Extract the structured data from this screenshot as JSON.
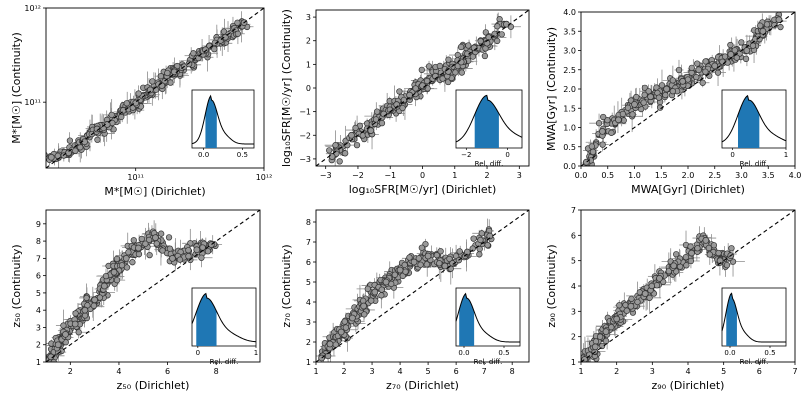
{
  "chart_data": [
    {
      "type": "scatter",
      "xlabel": "M*[M☉] (Dirichlet)",
      "ylabel": "M*[M☉] (Continuity)",
      "xscale": "log",
      "yscale": "log",
      "xlim": [
        20000000000,
        1000000000000
      ],
      "ylim": [
        20000000000,
        1000000000000
      ],
      "xticks": [
        100000000000,
        1000000000000
      ],
      "xticklabels": [
        "10¹¹",
        "10¹²"
      ],
      "yticks": [
        100000000000,
        1000000000000
      ],
      "yticklabels": [
        "10¹¹",
        "10¹²"
      ],
      "points": [
        [
          22000000000,
          26000000000
        ],
        [
          30000000000,
          29000000000
        ],
        [
          40000000000,
          38000000000
        ],
        [
          50000000000,
          52000000000
        ],
        [
          60000000000,
          58000000000
        ],
        [
          80000000000,
          82000000000
        ],
        [
          100000000000,
          98000000000
        ],
        [
          130000000000,
          135000000000
        ],
        [
          160000000000,
          150000000000
        ],
        [
          200000000000,
          210000000000
        ],
        [
          260000000000,
          255000000000
        ],
        [
          350000000000,
          360000000000
        ],
        [
          500000000000,
          490000000000
        ],
        [
          700000000000,
          700000000000
        ]
      ],
      "identity_line": true,
      "inset": {
        "xlabel": "",
        "xticks": [
          0.0,
          0.5
        ],
        "xticklabels": [
          "0.0",
          "0.5"
        ],
        "xlim": [
          -0.15,
          0.65
        ],
        "peak": 0.1,
        "spread": 0.08
      }
    },
    {
      "type": "scatter",
      "xlabel": "log₁₀SFR[M☉/yr] (Dirichlet)",
      "ylabel": "log₁₀SFR[M☉/yr] (Continuity)",
      "xlim": [
        -3.3,
        3.3
      ],
      "ylim": [
        -3.3,
        3.3
      ],
      "xticks": [
        -3,
        -2,
        -1,
        0,
        1,
        2,
        3
      ],
      "xticklabels": [
        "−3",
        "−2",
        "−1",
        "0",
        "1",
        "2",
        "3"
      ],
      "yticks": [
        -3,
        -2,
        -1,
        0,
        1,
        2,
        3
      ],
      "yticklabels": [
        "−3",
        "−2",
        "−1",
        "0",
        "1",
        "2",
        "3"
      ],
      "points": [
        [
          -2.8,
          -2.9
        ],
        [
          -2.2,
          -2.0
        ],
        [
          -1.6,
          -1.8
        ],
        [
          -1.2,
          -1.1
        ],
        [
          -0.8,
          -0.7
        ],
        [
          -0.4,
          -0.3
        ],
        [
          0.0,
          0.1
        ],
        [
          0.4,
          0.5
        ],
        [
          0.8,
          0.7
        ],
        [
          1.2,
          1.1
        ],
        [
          1.6,
          1.7
        ],
        [
          2.0,
          1.9
        ],
        [
          2.6,
          2.7
        ]
      ],
      "identity_line": true,
      "inset": {
        "xlabel": "Rel. diff.",
        "xticks": [
          -2,
          0
        ],
        "xticklabels": [
          "−2",
          "0"
        ],
        "xlim": [
          -2.5,
          0.7
        ],
        "peak": -1.0,
        "spread": 0.6
      }
    },
    {
      "type": "scatter",
      "xlabel": "MWA[Gyr] (Dirichlet)",
      "ylabel": "MWA[Gyr] (Continuity)",
      "xlim": [
        0.0,
        4.0
      ],
      "ylim": [
        0.0,
        4.0
      ],
      "xticks": [
        0.0,
        0.5,
        1.0,
        1.5,
        2.0,
        2.5,
        3.0,
        3.5,
        4.0
      ],
      "xticklabels": [
        "0.0",
        "0.5",
        "1.0",
        "1.5",
        "2.0",
        "2.5",
        "3.0",
        "3.5",
        "4.0"
      ],
      "yticks": [
        0.0,
        0.5,
        1.0,
        1.5,
        2.0,
        2.5,
        3.0,
        3.5,
        4.0
      ],
      "yticklabels": [
        "0.0",
        "0.5",
        "1.0",
        "1.5",
        "2.0",
        "2.5",
        "3.0",
        "3.5",
        "4.0"
      ],
      "points": [
        [
          0.1,
          0.1
        ],
        [
          0.4,
          0.9
        ],
        [
          0.7,
          1.2
        ],
        [
          1.0,
          1.6
        ],
        [
          1.3,
          1.8
        ],
        [
          1.6,
          2.0
        ],
        [
          1.9,
          2.2
        ],
        [
          2.2,
          2.5
        ],
        [
          2.5,
          2.6
        ],
        [
          2.8,
          2.9
        ],
        [
          3.1,
          3.0
        ],
        [
          3.4,
          3.5
        ],
        [
          3.7,
          3.8
        ]
      ],
      "identity_line": true,
      "inset": {
        "xlabel": "Rel. diff.",
        "xticks": [
          0,
          1
        ],
        "xticklabels": [
          "0",
          "1"
        ],
        "xlim": [
          -0.2,
          1.0
        ],
        "peak": 0.3,
        "spread": 0.2
      }
    },
    {
      "type": "scatter",
      "xlabel": "z₅₀ (Dirichlet)",
      "ylabel": "z₅₀ (Continuity)",
      "xlim": [
        1.0,
        9.8
      ],
      "ylim": [
        1.0,
        9.8
      ],
      "xticks": [
        2,
        4,
        6,
        8
      ],
      "xticklabels": [
        "2",
        "4",
        "6",
        "8"
      ],
      "yticks": [
        1,
        2,
        3,
        4,
        5,
        6,
        7,
        8,
        9
      ],
      "yticklabels": [
        "1",
        "2",
        "3",
        "4",
        "5",
        "6",
        "7",
        "8",
        "9"
      ],
      "points": [
        [
          1.2,
          1.3
        ],
        [
          1.5,
          2.0
        ],
        [
          1.8,
          2.6
        ],
        [
          2.2,
          3.2
        ],
        [
          2.6,
          4.0
        ],
        [
          3.0,
          4.6
        ],
        [
          3.4,
          5.4
        ],
        [
          3.8,
          6.2
        ],
        [
          4.3,
          7.0
        ],
        [
          4.8,
          7.6
        ],
        [
          5.5,
          8.2
        ],
        [
          6.2,
          7.0
        ],
        [
          7.2,
          7.5
        ],
        [
          7.8,
          7.8
        ]
      ],
      "identity_line": true,
      "inset": {
        "xlabel": "Rel. diff.",
        "xticks": [
          0,
          1
        ],
        "xticklabels": [
          "0",
          "1"
        ],
        "xlim": [
          -0.1,
          1.0
        ],
        "peak": 0.15,
        "spread": 0.18
      }
    },
    {
      "type": "scatter",
      "xlabel": "z₇₀ (Dirichlet)",
      "ylabel": "z₇₀ (Continuity)",
      "xlim": [
        1.0,
        8.6
      ],
      "ylim": [
        1.0,
        8.6
      ],
      "xticks": [
        1,
        2,
        3,
        4,
        5,
        6,
        7,
        8
      ],
      "xticklabels": [
        "1",
        "2",
        "3",
        "4",
        "5",
        "6",
        "7",
        "8"
      ],
      "yticks": [
        1,
        2,
        3,
        4,
        5,
        6,
        7,
        8
      ],
      "yticklabels": [
        "1",
        "2",
        "3",
        "4",
        "5",
        "6",
        "7",
        "8"
      ],
      "points": [
        [
          1.2,
          1.2
        ],
        [
          1.5,
          1.9
        ],
        [
          1.9,
          2.5
        ],
        [
          2.3,
          3.2
        ],
        [
          2.7,
          3.8
        ],
        [
          3.1,
          4.5
        ],
        [
          3.5,
          5.0
        ],
        [
          4.0,
          5.6
        ],
        [
          4.5,
          6.0
        ],
        [
          5.0,
          6.3
        ],
        [
          5.6,
          5.8
        ],
        [
          6.4,
          6.5
        ],
        [
          7.2,
          7.3
        ]
      ],
      "identity_line": true,
      "inset": {
        "xlabel": "Rel. diff.",
        "xticks": [
          0.0,
          0.5
        ],
        "xticklabels": [
          "0.0",
          "0.5"
        ],
        "xlim": [
          -0.1,
          0.7
        ],
        "peak": 0.03,
        "spread": 0.1
      }
    },
    {
      "type": "scatter",
      "xlabel": "z₉₀ (Dirichlet)",
      "ylabel": "z₉₀ (Continuity)",
      "xlim": [
        1.0,
        7.0
      ],
      "ylim": [
        1.0,
        7.0
      ],
      "xticks": [
        1,
        2,
        3,
        4,
        5,
        6,
        7
      ],
      "xticklabels": [
        "1",
        "2",
        "3",
        "4",
        "5",
        "6",
        "7"
      ],
      "yticks": [
        1,
        2,
        3,
        4,
        5,
        6,
        7
      ],
      "yticklabels": [
        "1",
        "2",
        "3",
        "4",
        "5",
        "6",
        "7"
      ],
      "points": [
        [
          1.1,
          1.1
        ],
        [
          1.4,
          1.6
        ],
        [
          1.7,
          2.2
        ],
        [
          2.0,
          2.7
        ],
        [
          2.4,
          3.2
        ],
        [
          2.8,
          3.7
        ],
        [
          3.2,
          4.3
        ],
        [
          3.6,
          4.8
        ],
        [
          4.1,
          5.3
        ],
        [
          4.5,
          5.8
        ],
        [
          4.9,
          5.0
        ],
        [
          5.2,
          5.2
        ]
      ],
      "identity_line": true,
      "inset": {
        "xlabel": "Rel. diff.",
        "xticks": [
          0.0,
          0.5
        ],
        "xticklabels": [
          "0.0",
          "0.5"
        ],
        "xlim": [
          -0.1,
          0.7
        ],
        "peak": 0.02,
        "spread": 0.07
      }
    }
  ],
  "colors": {
    "marker_fill": "#999999",
    "marker_edge": "#333333",
    "errorbar": "#8c8c8c",
    "identity": "#000000",
    "inset_fill": "#1f77b4"
  }
}
